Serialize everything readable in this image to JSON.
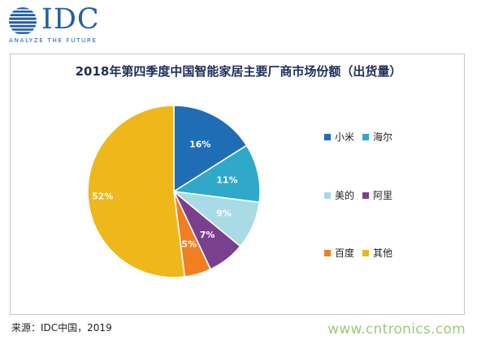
{
  "logo": {
    "name": "IDC",
    "tagline": "ANALYZE THE FUTURE"
  },
  "chart_data": {
    "type": "pie",
    "title": "2018年第四季度中国智能家居主要厂商市场份额（出货量）",
    "unit": "%",
    "slices": [
      {
        "name": "小米",
        "value": 16,
        "label": "16%",
        "color": "#1f6db5"
      },
      {
        "name": "海尔",
        "value": 11,
        "label": "11%",
        "color": "#2fa8c9"
      },
      {
        "name": "美的",
        "value": 9,
        "label": "9%",
        "color": "#a8dbe6"
      },
      {
        "name": "阿里",
        "value": 7,
        "label": "7%",
        "color": "#7b3f8f"
      },
      {
        "name": "百度",
        "value": 5,
        "label": "5%",
        "color": "#f07f22"
      },
      {
        "name": "其他",
        "value": 52,
        "label": "52%",
        "color": "#f0b71b"
      }
    ],
    "legend_placement": "right",
    "legend_rows": [
      [
        0,
        1
      ],
      [
        2,
        3
      ],
      [
        4,
        5
      ]
    ],
    "start": "12 o'clock, clockwise"
  },
  "source": "来源：IDC中国，2019",
  "watermark": "www.cntronics.com"
}
